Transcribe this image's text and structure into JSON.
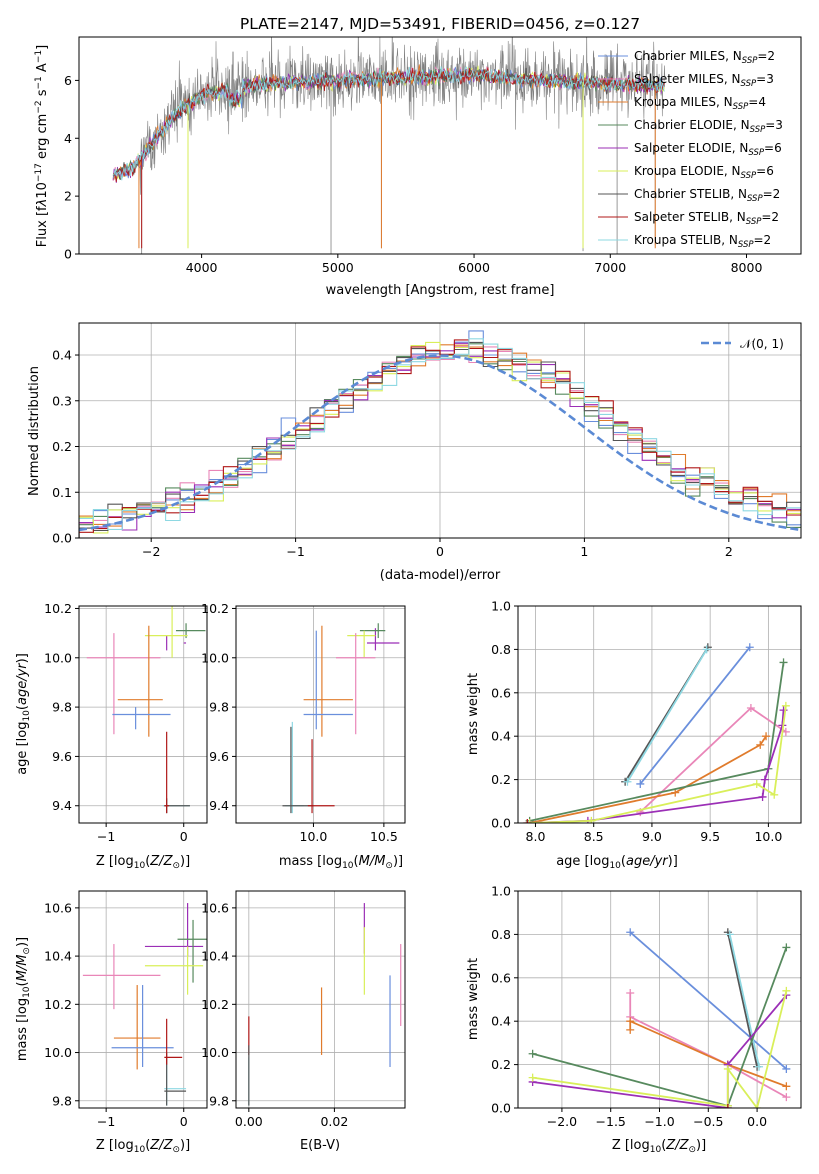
{
  "title": "PLATE=2147, MJD=53491, FIBERID=0456, z=0.127",
  "models": [
    {
      "name": "Chabrier MILES",
      "nssp": "2",
      "color": "#6a8fdc"
    },
    {
      "name": "Salpeter MILES",
      "nssp": "3",
      "color": "#e986b8"
    },
    {
      "name": "Kroupa MILES",
      "nssp": "4",
      "color": "#e07b2c"
    },
    {
      "name": "Chabrier ELODIE",
      "nssp": "3",
      "color": "#578a5e"
    },
    {
      "name": "Salpeter ELODIE",
      "nssp": "6",
      "color": "#9b2fb6"
    },
    {
      "name": "Kroupa ELODIE",
      "nssp": "6",
      "color": "#d9ef5a"
    },
    {
      "name": "Chabrier STELIB",
      "nssp": "2",
      "color": "#555555"
    },
    {
      "name": "Salpeter STELIB",
      "nssp": "2",
      "color": "#b01818"
    },
    {
      "name": "Kroupa STELIB",
      "nssp": "2",
      "color": "#8ed8e2"
    }
  ],
  "chart_data": [
    {
      "id": "spectrum",
      "type": "line",
      "xlabel": "wavelength [Angstrom, rest frame]",
      "ylabel": "Flux [f",
      "xlim": [
        3100,
        8400
      ],
      "ylim": [
        0,
        7.5
      ],
      "xticks": [
        4000,
        5000,
        6000,
        7000,
        8000
      ],
      "yticks": [
        0,
        2,
        4,
        6
      ],
      "data_color": "#808080",
      "continuum": {
        "x": [
          3350,
          3500,
          3600,
          3800,
          4000,
          4200,
          4500,
          5000,
          5500,
          6000,
          6500,
          7000,
          7400
        ],
        "y": [
          2.7,
          3.0,
          3.6,
          4.8,
          5.5,
          5.7,
          5.9,
          6.0,
          6.1,
          6.2,
          6.0,
          5.9,
          5.8
        ]
      },
      "noise_start": 3550,
      "noise_end": 7450,
      "data_spikes": [
        {
          "x": 3560,
          "y": 0
        },
        {
          "x": 3900,
          "y": 0.3
        },
        {
          "x": 4950,
          "y": 0
        },
        {
          "x": 5320,
          "y": 0.2
        },
        {
          "x": 6800,
          "y": 0.1
        },
        {
          "x": 7050,
          "y": 0
        },
        {
          "x": 7330,
          "y": 0.3
        }
      ],
      "legend_position": "right"
    },
    {
      "id": "residuals",
      "type": "histogram",
      "xlabel": "(data-model)/error",
      "ylabel": "Normed distribution",
      "xlim": [
        -2.5,
        2.5
      ],
      "ylim": [
        0,
        0.47
      ],
      "xticks": [
        -2,
        -1,
        0,
        1,
        2
      ],
      "yticks": [
        0.0,
        0.1,
        0.2,
        0.3,
        0.4
      ],
      "bin_width": 0.1,
      "curve_label": "𝒩(0, 1)",
      "curve_color": "#5b8ad4",
      "grid": true,
      "legend_position": "upper right"
    },
    {
      "id": "age_vs_Z",
      "type": "scatter",
      "xlabel": "Z [log10(Z/Z⊙)]",
      "ylabel": "age [log10(age/yr)]",
      "xlim": [
        -1.35,
        0.3
      ],
      "ylim": [
        9.33,
        10.21
      ],
      "xticks": [
        -1,
        0
      ],
      "yticks": [
        9.4,
        9.6,
        9.8,
        10.0,
        10.2
      ],
      "grid": true,
      "points": [
        {
          "m": 4,
          "x": -0.22,
          "y": 10.06,
          "xe": [
            -0.22,
            0.25
          ],
          "ye": [
            0.03,
            0.03
          ]
        },
        {
          "m": 3,
          "x": 0.03,
          "y": 10.11,
          "xe": [
            0.13,
            0.25
          ],
          "ye": [
            0.03,
            0.03
          ]
        },
        {
          "m": 5,
          "x": -0.15,
          "y": 10.09,
          "xe": [
            0.35,
            0.2
          ],
          "ye": [
            0.09,
            0.18
          ]
        },
        {
          "m": 1,
          "x": -0.9,
          "y": 10.0,
          "xe": [
            0.35,
            0.6
          ],
          "ye": [
            0.31,
            0.1
          ]
        },
        {
          "m": 2,
          "x": -0.45,
          "y": 9.83,
          "xe": [
            0.4,
            0.18
          ],
          "ye": [
            0.15,
            0.3
          ]
        },
        {
          "m": 0,
          "x": -0.62,
          "y": 9.77,
          "xe": [
            0.3,
            0.45
          ],
          "ye": [
            0.06,
            0.03
          ]
        },
        {
          "m": 8,
          "x": -0.22,
          "y": 9.4,
          "xe": [
            0.05,
            0.3
          ],
          "ye": [
            0.03,
            0.03
          ]
        },
        {
          "m": 6,
          "x": -0.22,
          "y": 9.4,
          "xe": [
            0.03,
            0.3
          ],
          "ye": [
            0.03,
            0.03
          ]
        },
        {
          "m": 7,
          "x": -0.22,
          "y": 9.4,
          "xe": [
            0.03,
            0.03
          ],
          "ye": [
            0.03,
            0.3
          ]
        }
      ]
    },
    {
      "id": "age_vs_mass",
      "type": "scatter",
      "xlabel": "mass [log10(M/M⊙)]",
      "ylabel": "",
      "xlim": [
        9.45,
        10.65
      ],
      "ylim": [
        9.33,
        10.21
      ],
      "xticks": [
        10.0,
        10.5
      ],
      "yticks": [
        9.4,
        9.6,
        9.8,
        10.0,
        10.2
      ],
      "grid": true,
      "points": [
        {
          "m": 4,
          "x": 10.44,
          "y": 10.06,
          "xe": [
            0.06,
            0.17
          ],
          "ye": [
            0.03,
            0.06
          ]
        },
        {
          "m": 3,
          "x": 10.46,
          "y": 10.11,
          "xe": [
            0.13,
            0.05
          ],
          "ye": [
            0.03,
            0.03
          ]
        },
        {
          "m": 5,
          "x": 10.36,
          "y": 10.09,
          "xe": [
            0.12,
            0.08
          ],
          "ye": [
            0.09,
            0.02
          ]
        },
        {
          "m": 1,
          "x": 10.3,
          "y": 10.0,
          "xe": [
            0.14,
            0.14
          ],
          "ye": [
            0.31,
            0.1
          ]
        },
        {
          "m": 2,
          "x": 10.06,
          "y": 9.83,
          "xe": [
            0.13,
            0.22
          ],
          "ye": [
            0.15,
            0.3
          ]
        },
        {
          "m": 0,
          "x": 10.02,
          "y": 9.77,
          "xe": [
            0.09,
            0.26
          ],
          "ye": [
            0.06,
            0.34
          ]
        },
        {
          "m": 8,
          "x": 9.85,
          "y": 9.4,
          "xe": [
            0.05,
            0.08
          ],
          "ye": [
            0.03,
            0.34
          ]
        },
        {
          "m": 6,
          "x": 9.84,
          "y": 9.4,
          "xe": [
            0.06,
            0.16
          ],
          "ye": [
            0.03,
            0.32
          ]
        },
        {
          "m": 7,
          "x": 9.99,
          "y": 9.4,
          "xe": [
            0.03,
            0.16
          ],
          "ye": [
            0.03,
            0.27
          ]
        }
      ]
    },
    {
      "id": "weight_vs_age",
      "type": "line",
      "xlabel": "age [log10(age/yr)]",
      "ylabel": "mass weight",
      "xlim": [
        7.85,
        10.28
      ],
      "ylim": [
        0,
        1.0
      ],
      "xticks": [
        8.0,
        8.5,
        9.0,
        9.5,
        10.0
      ],
      "yticks": [
        0.0,
        0.2,
        0.4,
        0.6,
        0.8,
        1.0
      ],
      "grid": true,
      "series": [
        {
          "m": 0,
          "x": [
            8.9,
            9.84
          ],
          "y": [
            0.18,
            0.81
          ]
        },
        {
          "m": 6,
          "x": [
            8.77,
            9.48
          ],
          "y": [
            0.19,
            0.81
          ]
        },
        {
          "m": 8,
          "x": [
            8.79,
            9.47
          ],
          "y": [
            0.19,
            0.8
          ]
        },
        {
          "m": 1,
          "x": [
            8.9,
            9.85,
            10.15
          ],
          "y": [
            0.05,
            0.53,
            0.42
          ]
        },
        {
          "m": 2,
          "x": [
            7.95,
            9.2,
            9.93,
            9.98
          ],
          "y": [
            0.0,
            0.14,
            0.36,
            0.4
          ]
        },
        {
          "m": 3,
          "x": [
            7.95,
            10.0,
            10.13
          ],
          "y": [
            0.01,
            0.25,
            0.74
          ]
        },
        {
          "m": 4,
          "x": [
            7.95,
            8.45,
            9.95,
            9.97,
            10.12,
            10.13
          ],
          "y": [
            0.0,
            0.01,
            0.12,
            0.2,
            0.45,
            0.52
          ]
        },
        {
          "m": 5,
          "x": [
            7.95,
            8.48,
            9.9,
            10.05,
            10.15
          ],
          "y": [
            0.0,
            0.01,
            0.18,
            0.13,
            0.54
          ]
        },
        {
          "m": 7,
          "x": [
            7.93
          ],
          "y": [
            0.0
          ]
        }
      ]
    },
    {
      "id": "mass_vs_Z",
      "type": "scatter",
      "xlabel": "Z [log10(Z/Z⊙)]",
      "ylabel": "mass [log10(M/M⊙)]",
      "xlim": [
        -1.35,
        0.3
      ],
      "ylim": [
        9.77,
        10.67
      ],
      "xticks": [
        -1,
        0
      ],
      "yticks": [
        9.8,
        10.0,
        10.2,
        10.4,
        10.6
      ],
      "grid": true,
      "points": [
        {
          "m": 4,
          "x": 0.05,
          "y": 10.44,
          "xe": [
            0.55,
            0.2
          ],
          "ye": [
            0.04,
            0.18
          ]
        },
        {
          "m": 3,
          "x": 0.12,
          "y": 10.47,
          "xe": [
            0.2,
            0.2
          ],
          "ye": [
            0.18,
            0.08
          ]
        },
        {
          "m": 5,
          "x": 0.05,
          "y": 10.36,
          "xe": [
            0.55,
            0.2
          ],
          "ye": [
            0.12,
            0.08
          ]
        },
        {
          "m": 1,
          "x": -0.9,
          "y": 10.32,
          "xe": [
            0.4,
            0.6
          ],
          "ye": [
            0.14,
            0.13
          ]
        },
        {
          "m": 2,
          "x": -0.6,
          "y": 10.06,
          "xe": [
            0.3,
            0.3
          ],
          "ye": [
            0.13,
            0.22
          ]
        },
        {
          "m": 0,
          "x": -0.53,
          "y": 10.02,
          "xe": [
            0.4,
            0.4
          ],
          "ye": [
            0.08,
            0.26
          ]
        },
        {
          "m": 8,
          "x": -0.22,
          "y": 9.85,
          "xe": [
            0.03,
            0.25
          ],
          "ye": [
            0.07,
            0.1
          ]
        },
        {
          "m": 6,
          "x": -0.22,
          "y": 9.84,
          "xe": [
            0.03,
            0.25
          ],
          "ye": [
            0.06,
            0.16
          ]
        },
        {
          "m": 7,
          "x": -0.22,
          "y": 9.98,
          "xe": [
            0.03,
            0.2
          ],
          "ye": [
            0.03,
            0.16
          ]
        }
      ]
    },
    {
      "id": "mass_vs_ebv",
      "type": "scatter",
      "xlabel": "E(B-V)",
      "ylabel": "",
      "xlim": [
        -0.003,
        0.0365
      ],
      "ylim": [
        9.77,
        10.67
      ],
      "xticks": [
        0.0,
        0.02
      ],
      "yticks": [
        9.8,
        10.0,
        10.2,
        10.4,
        10.6
      ],
      "grid": true,
      "points": [
        {
          "m": 4,
          "x": 0.027,
          "y": 10.52,
          "xe": [
            0,
            0
          ],
          "ye": [
            0.11,
            0.1
          ]
        },
        {
          "m": 5,
          "x": 0.027,
          "y": 10.38,
          "xe": [
            0,
            0
          ],
          "ye": [
            0.14,
            0.14
          ]
        },
        {
          "m": 1,
          "x": 0.0355,
          "y": 10.32,
          "xe": [
            0,
            0
          ],
          "ye": [
            0.21,
            0.13
          ]
        },
        {
          "m": 0,
          "x": 0.033,
          "y": 10.12,
          "xe": [
            0,
            0
          ],
          "ye": [
            0.18,
            0.2
          ]
        },
        {
          "m": 2,
          "x": 0.017,
          "y": 10.13,
          "xe": [
            0,
            0
          ],
          "ye": [
            0.14,
            0.14
          ]
        },
        {
          "m": 7,
          "x": 0.0,
          "y": 10.07,
          "xe": [
            0,
            0
          ],
          "ye": [
            0.08,
            0.08
          ]
        },
        {
          "m": 8,
          "x": 0.0,
          "y": 9.88,
          "xe": [
            0,
            0
          ],
          "ye": [
            0.1,
            0.1
          ]
        },
        {
          "m": 6,
          "x": 0.0,
          "y": 9.9,
          "xe": [
            0,
            0
          ],
          "ye": [
            0.12,
            0.13
          ]
        }
      ]
    },
    {
      "id": "weight_vs_Z",
      "type": "line",
      "xlabel": "Z [log10(Z/Z⊙)]",
      "ylabel": "mass weight",
      "xlim": [
        -2.45,
        0.45
      ],
      "ylim": [
        0,
        1.0
      ],
      "xticks": [
        -2.0,
        -1.5,
        -1.0,
        -0.5,
        0.0
      ],
      "yticks": [
        0.0,
        0.2,
        0.4,
        0.6,
        0.8,
        1.0
      ],
      "grid": true,
      "series": [
        {
          "m": 0,
          "x": [
            -1.3,
            0.3
          ],
          "y": [
            0.81,
            0.18
          ]
        },
        {
          "m": 6,
          "x": [
            -0.3,
            0.0
          ],
          "y": [
            0.81,
            0.19
          ]
        },
        {
          "m": 8,
          "x": [
            -0.28,
            0.02
          ],
          "y": [
            0.8,
            0.19
          ]
        },
        {
          "m": 1,
          "x": [
            -1.3,
            -1.3,
            -0.3,
            0.3
          ],
          "y": [
            0.53,
            0.42,
            0.2,
            0.05
          ]
        },
        {
          "m": 2,
          "x": [
            -1.3,
            -1.3,
            -0.3,
            0.3
          ],
          "y": [
            0.36,
            0.4,
            0.2,
            0.1
          ]
        },
        {
          "m": 3,
          "x": [
            -2.3,
            -0.3,
            0.3
          ],
          "y": [
            0.25,
            0.01,
            0.74
          ]
        },
        {
          "m": 4,
          "x": [
            -2.3,
            -0.3,
            -0.3,
            0.3
          ],
          "y": [
            0.12,
            0.0,
            0.2,
            0.52
          ]
        },
        {
          "m": 5,
          "x": [
            -2.3,
            -0.3,
            -0.3,
            0.0,
            0.3
          ],
          "y": [
            0.14,
            0.01,
            0.18,
            0.0,
            0.54
          ]
        },
        {
          "m": 7,
          "x": [
            -0.3
          ],
          "y": [
            0.0
          ]
        }
      ]
    }
  ]
}
